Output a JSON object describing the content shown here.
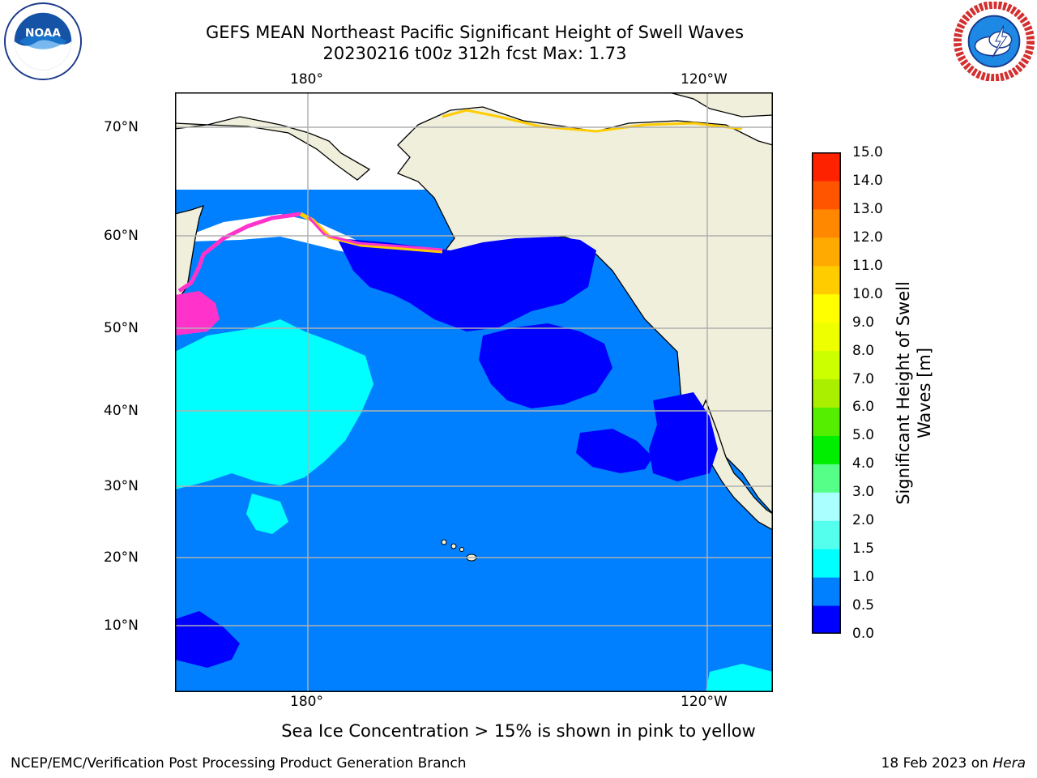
{
  "header": {
    "title_line1": "GEFS MEAN Northeast Pacific Significant Height of Swell Waves",
    "title_line2": "20230216 t00z 312h fcst   Max: 1.73"
  },
  "logos": {
    "left": "noaa-logo",
    "right": "nws-logo"
  },
  "map": {
    "lon_ticks_top": [
      "180°",
      "120°W"
    ],
    "lon_ticks_bottom": [
      "180°",
      "120°W"
    ],
    "lat_ticks": [
      "70°N",
      "60°N",
      "50°N",
      "40°N",
      "30°N",
      "20°N",
      "10°N"
    ],
    "colors": {
      "land": "#efefdc",
      "ice_white": "#ffffff",
      "grid": "#b0b0b0",
      "swell_base": "#0080ff",
      "swell_low": "#0000ff",
      "swell_mid": "#00ffff",
      "ice_pink": "#ff33cc",
      "ice_yellow": "#ffcc00"
    }
  },
  "colorbar": {
    "label": "Significant Height of Swell\nWaves [m]",
    "ticks": [
      "15.0",
      "14.0",
      "13.0",
      "12.0",
      "11.0",
      "10.0",
      "9.0",
      "8.0",
      "7.0",
      "6.0",
      "5.0",
      "4.0",
      "3.0",
      "2.0",
      "1.5",
      "1.0",
      "0.5",
      "0.0"
    ],
    "colors_bottom_to_top": [
      "#0000ff",
      "#0080ff",
      "#00ffff",
      "#55ffee",
      "#aaffff",
      "#55ff88",
      "#00ee00",
      "#55ee00",
      "#aaee00",
      "#ccff00",
      "#eeff00",
      "#ffff00",
      "#ffcc00",
      "#ffaa00",
      "#ff8800",
      "#ff5500",
      "#ff2200"
    ]
  },
  "footer": {
    "sea_ice_note": "Sea Ice Concentration > 15% is shown in pink to yellow",
    "credit_left": "NCEP/EMC/Verification Post Processing Product Generation Branch",
    "credit_right_prefix": "18 Feb 2023 on ",
    "credit_right_machine": "Hera"
  }
}
